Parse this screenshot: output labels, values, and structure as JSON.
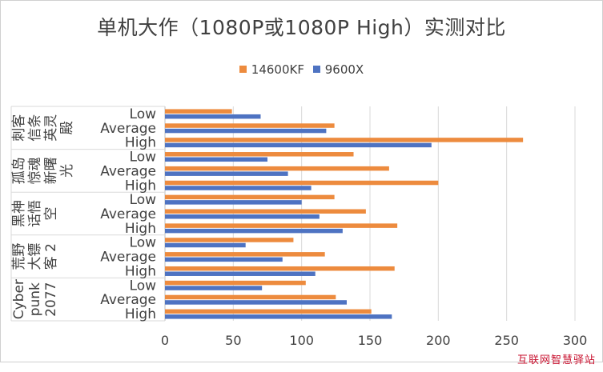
{
  "chart_data": {
    "type": "bar",
    "orientation": "horizontal",
    "title": "单机大作（1080P或1080P High）实测对比",
    "xlabel": "",
    "ylabel": "",
    "xlim": [
      0,
      300
    ],
    "xticks": [
      0,
      50,
      100,
      150,
      200,
      250,
      300
    ],
    "grid": true,
    "legend_position": "top",
    "groups": [
      {
        "label": "刺客信条英灵殿",
        "label_lines": [
          "刺客",
          "信条",
          "英灵",
          "殿"
        ]
      },
      {
        "label": "孤岛惊魂新曙光",
        "label_lines": [
          "孤岛",
          "惊魂",
          "新曙",
          "光"
        ]
      },
      {
        "label": "黑神话悟空",
        "label_lines": [
          "黑神",
          "话悟",
          "空"
        ]
      },
      {
        "label": "荒野大镖客2",
        "label_lines": [
          "荒野",
          "大镖",
          "客 2"
        ]
      },
      {
        "label": "Cyberpunk 2077",
        "label_lines": [
          "Cyber",
          "punk",
          "2077"
        ]
      }
    ],
    "subcategories": [
      "Low",
      "Average",
      "High"
    ],
    "series": [
      {
        "name": "14600KF",
        "color": "#ed8b3e",
        "values": [
          [
            49,
            124,
            262
          ],
          [
            138,
            164,
            200
          ],
          [
            124,
            147,
            170
          ],
          [
            94,
            117,
            168
          ],
          [
            103,
            125,
            151
          ]
        ]
      },
      {
        "name": "9600X",
        "color": "#4e73c2",
        "values": [
          [
            70,
            118,
            195
          ],
          [
            75,
            90,
            107
          ],
          [
            100,
            113,
            130
          ],
          [
            59,
            86,
            110
          ],
          [
            71,
            133,
            166
          ]
        ]
      }
    ]
  },
  "watermark": "互联网智慧驿站",
  "colors": {
    "grid": "#d9d9d9",
    "text": "#404040",
    "axis": "#bfbfbf"
  }
}
